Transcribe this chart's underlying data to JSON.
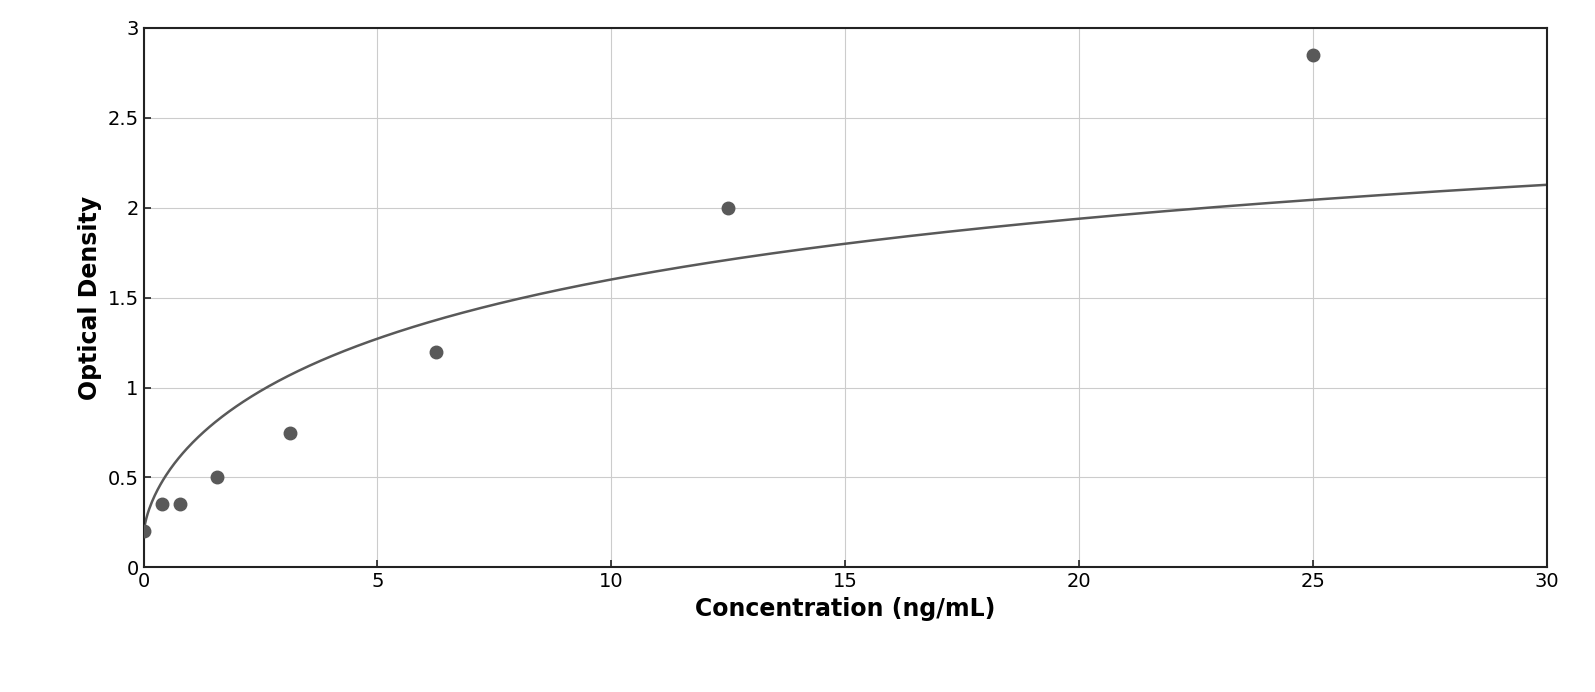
{
  "x_data": [
    0.0,
    0.39,
    0.78,
    1.56,
    3.125,
    6.25,
    12.5,
    25.0
  ],
  "y_data": [
    0.2,
    0.35,
    0.35,
    0.5,
    0.75,
    1.2,
    2.0,
    2.85
  ],
  "xlim": [
    0,
    30
  ],
  "ylim": [
    0,
    3
  ],
  "xticks": [
    0,
    5,
    10,
    15,
    20,
    25,
    30
  ],
  "yticks": [
    0,
    0.5,
    1.0,
    1.5,
    2.0,
    2.5,
    3.0
  ],
  "xlabel": "Concentration (ng/mL)",
  "ylabel": "Optical Density",
  "marker_color": "#595959",
  "line_color": "#595959",
  "marker_size": 9,
  "line_width": 1.8,
  "background_color": "#ffffff",
  "plot_bg_color": "#ffffff",
  "grid_color": "#cccccc",
  "xlabel_fontsize": 17,
  "ylabel_fontsize": 17,
  "tick_fontsize": 14,
  "xlabel_fontweight": "bold",
  "ylabel_fontweight": "bold",
  "xtick_labels": [
    "0",
    "5",
    "10",
    "15",
    "20",
    "25",
    "30"
  ],
  "ytick_labels": [
    "0",
    "0.5",
    "1",
    "1.5",
    "2",
    "2.5",
    "3"
  ]
}
